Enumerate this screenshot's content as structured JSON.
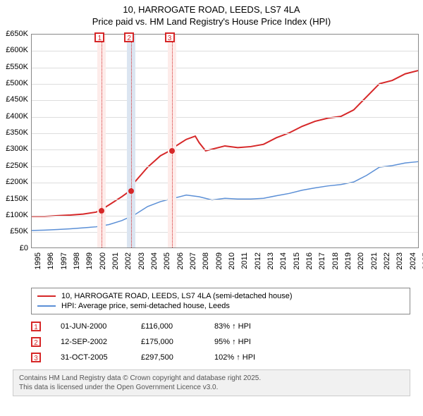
{
  "title": {
    "line1": "10, HARROGATE ROAD, LEEDS, LS7 4LA",
    "line2": "Price paid vs. HM Land Registry's House Price Index (HPI)"
  },
  "chart": {
    "type": "line",
    "background_color": "#ffffff",
    "grid_color": "#dddddd",
    "axis_color": "#888888",
    "x": {
      "min": 1995,
      "max": 2025,
      "step": 1
    },
    "y": {
      "min": 0,
      "max": 650000,
      "step": 50000,
      "prefix": "£",
      "k_suffix": "K"
    },
    "marker_band_colors": {
      "light": "#fdecea",
      "dark": "#dbe5f1"
    },
    "marker_box_border": "#d62728",
    "marker_vline_color": "#d62728",
    "markers": [
      {
        "num": "1",
        "year": 2000.42,
        "band": "light"
      },
      {
        "num": "2",
        "year": 2002.7,
        "band": "dark"
      },
      {
        "num": "3",
        "year": 2005.83,
        "band": "light"
      }
    ],
    "series": [
      {
        "id": "subject",
        "label": "10, HARROGATE ROAD, LEEDS, LS7 4LA (semi-detached house)",
        "color": "#d62728",
        "line_width": 2,
        "points": [
          [
            1995,
            95000
          ],
          [
            1996,
            95000
          ],
          [
            1997,
            97000
          ],
          [
            1998,
            99000
          ],
          [
            1999,
            102000
          ],
          [
            2000,
            108000
          ],
          [
            2000.42,
            116000
          ],
          [
            2001,
            130000
          ],
          [
            2002,
            155000
          ],
          [
            2002.7,
            175000
          ],
          [
            2003,
            200000
          ],
          [
            2004,
            245000
          ],
          [
            2005,
            280000
          ],
          [
            2005.83,
            297500
          ],
          [
            2006,
            305000
          ],
          [
            2007,
            330000
          ],
          [
            2007.7,
            340000
          ],
          [
            2008,
            320000
          ],
          [
            2008.5,
            295000
          ],
          [
            2009,
            300000
          ],
          [
            2010,
            310000
          ],
          [
            2011,
            305000
          ],
          [
            2012,
            308000
          ],
          [
            2013,
            315000
          ],
          [
            2014,
            335000
          ],
          [
            2015,
            350000
          ],
          [
            2016,
            370000
          ],
          [
            2017,
            385000
          ],
          [
            2018,
            395000
          ],
          [
            2019,
            400000
          ],
          [
            2020,
            420000
          ],
          [
            2021,
            460000
          ],
          [
            2022,
            500000
          ],
          [
            2023,
            510000
          ],
          [
            2024,
            530000
          ],
          [
            2025,
            540000
          ]
        ],
        "sale_dots": [
          {
            "year": 2000.42,
            "value": 116000
          },
          {
            "year": 2002.7,
            "value": 175000
          },
          {
            "year": 2005.83,
            "value": 297500
          }
        ]
      },
      {
        "id": "hpi",
        "label": "HPI: Average price, semi-detached house, Leeds",
        "color": "#5b8fd6",
        "line_width": 1.5,
        "points": [
          [
            1995,
            52000
          ],
          [
            1996,
            53000
          ],
          [
            1997,
            55000
          ],
          [
            1998,
            57000
          ],
          [
            1999,
            60000
          ],
          [
            2000,
            63000
          ],
          [
            2001,
            70000
          ],
          [
            2002,
            82000
          ],
          [
            2003,
            100000
          ],
          [
            2004,
            125000
          ],
          [
            2005,
            140000
          ],
          [
            2006,
            150000
          ],
          [
            2007,
            160000
          ],
          [
            2008,
            155000
          ],
          [
            2009,
            145000
          ],
          [
            2010,
            150000
          ],
          [
            2011,
            148000
          ],
          [
            2012,
            148000
          ],
          [
            2013,
            150000
          ],
          [
            2014,
            158000
          ],
          [
            2015,
            165000
          ],
          [
            2016,
            175000
          ],
          [
            2017,
            182000
          ],
          [
            2018,
            188000
          ],
          [
            2019,
            192000
          ],
          [
            2020,
            200000
          ],
          [
            2021,
            220000
          ],
          [
            2022,
            245000
          ],
          [
            2023,
            250000
          ],
          [
            2024,
            258000
          ],
          [
            2025,
            262000
          ]
        ]
      }
    ]
  },
  "legend": {
    "rows": [
      {
        "color": "#d62728",
        "label": "10, HARROGATE ROAD, LEEDS, LS7 4LA (semi-detached house)"
      },
      {
        "color": "#5b8fd6",
        "label": "HPI: Average price, semi-detached house, Leeds"
      }
    ]
  },
  "sales": {
    "box_border": "#d62728",
    "rows": [
      {
        "num": "1",
        "date": "01-JUN-2000",
        "price": "£116,000",
        "pct": "83% ↑ HPI"
      },
      {
        "num": "2",
        "date": "12-SEP-2002",
        "price": "£175,000",
        "pct": "95% ↑ HPI"
      },
      {
        "num": "3",
        "date": "31-OCT-2005",
        "price": "£297,500",
        "pct": "102% ↑ HPI"
      }
    ]
  },
  "attribution": {
    "line1": "Contains HM Land Registry data © Crown copyright and database right 2025.",
    "line2": "This data is licensed under the Open Government Licence v3.0."
  }
}
